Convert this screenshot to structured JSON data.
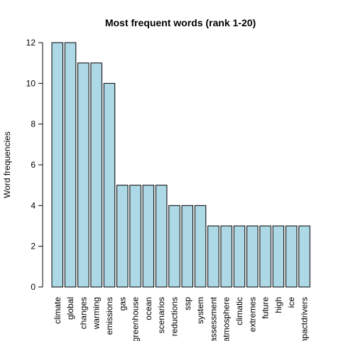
{
  "chart_data": {
    "type": "bar",
    "title": "Most frequent words (rank 1-20)",
    "ylabel": "Word frequencies",
    "xlabel": "",
    "ylim": [
      0,
      12
    ],
    "yticks": [
      0,
      2,
      4,
      6,
      8,
      10,
      12
    ],
    "bar_color": "#add8e6",
    "categories": [
      "climate",
      "global",
      "changes",
      "warming",
      "emissions",
      "gas",
      "greenhouse",
      "ocean",
      "scenarios",
      "reductions",
      "ssp",
      "system",
      "assessment",
      "atmosphere",
      "climatic",
      "extremes",
      "future",
      "high",
      "ice",
      "impactdrivers"
    ],
    "values": [
      12,
      12,
      11,
      11,
      10,
      5,
      5,
      5,
      5,
      4,
      4,
      4,
      3,
      3,
      3,
      3,
      3,
      3,
      3,
      3
    ]
  }
}
